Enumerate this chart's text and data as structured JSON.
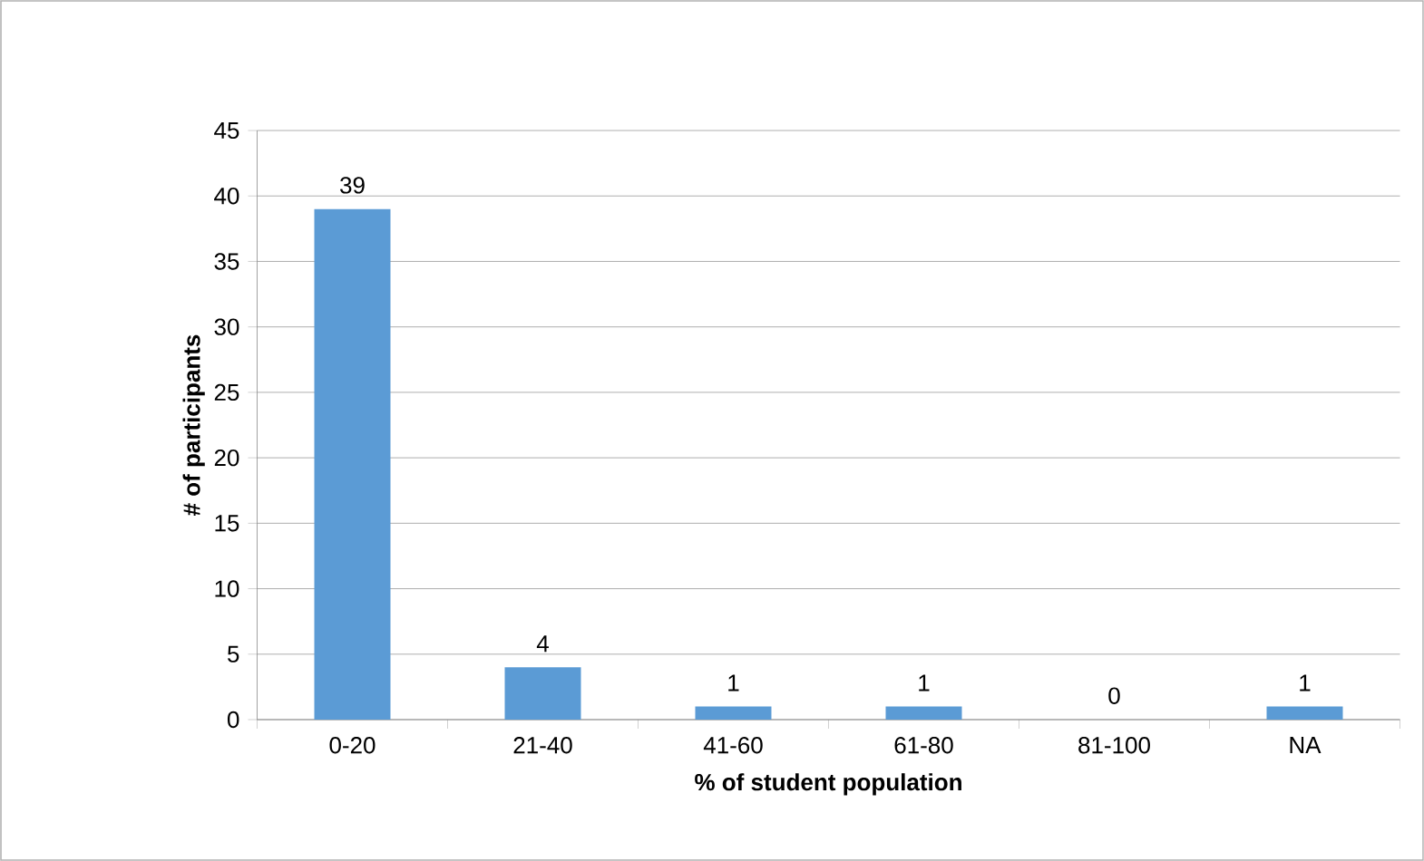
{
  "chart_data": {
    "type": "bar",
    "xlabel": "% of student population",
    "ylabel": "# of participants",
    "categories": [
      "0-20",
      "21-40",
      "41-60",
      "61-80",
      "81-100",
      "NA"
    ],
    "values": [
      39,
      4,
      1,
      1,
      0,
      1
    ],
    "color": "#5b9bd5",
    "ylim": [
      0,
      45
    ],
    "yticks": [
      0,
      5,
      10,
      15,
      20,
      25,
      30,
      35,
      40,
      45
    ],
    "grid": "y",
    "data_labels": true
  }
}
